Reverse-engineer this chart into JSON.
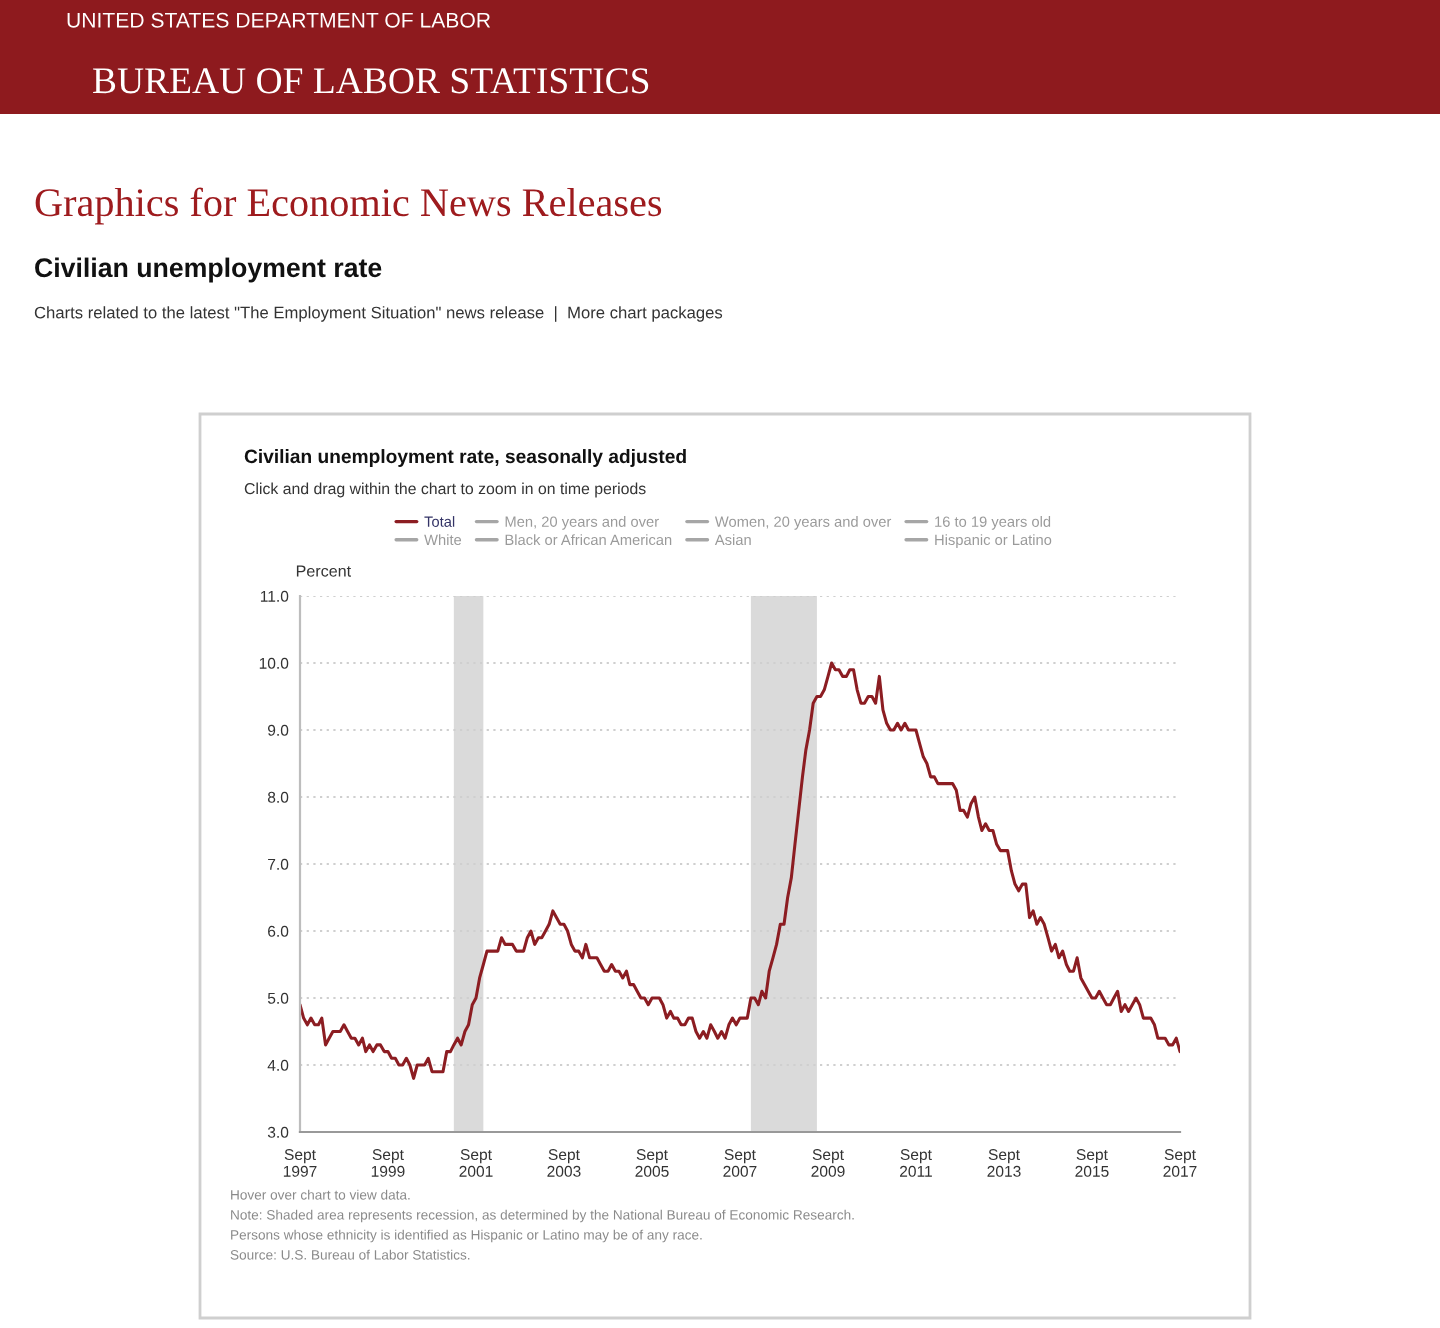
{
  "chart_data": {
    "type": "line",
    "title": "Civilian unemployment rate, seasonally adjusted",
    "subtitle": "Click and drag within the chart to zoom in on time periods",
    "ylabel": "Percent",
    "annotations": [
      "UNITED STATES DEPARTMENT OF LABOR",
      "BUREAU OF LABOR STATISTICS",
      "Graphics for Economic News Releases",
      "Civilian unemployment rate",
      "Charts related to the latest \"The Employment Situation\" news release  |  More chart packages",
      "Hover over chart to view data.",
      "Note: Shaded area represents recession, as determined by the National Bureau of Economic Research.",
      "Persons whose ethnicity is identified as Hispanic or Latino may be of any race.",
      "Source: U.S. Bureau of Labor Statistics."
    ],
    "x": [
      "1997-09",
      "1997-10",
      "1997-11",
      "1997-12",
      "1998-01",
      "1998-02",
      "1998-03",
      "1998-04",
      "1998-05",
      "1998-06",
      "1998-07",
      "1998-08",
      "1998-09",
      "1998-10",
      "1998-11",
      "1998-12",
      "1999-01",
      "1999-02",
      "1999-03",
      "1999-04",
      "1999-05",
      "1999-06",
      "1999-07",
      "1999-08",
      "1999-09",
      "1999-10",
      "1999-11",
      "1999-12",
      "2000-01",
      "2000-02",
      "2000-03",
      "2000-04",
      "2000-05",
      "2000-06",
      "2000-07",
      "2000-08",
      "2000-09",
      "2000-10",
      "2000-11",
      "2000-12",
      "2001-01",
      "2001-02",
      "2001-03",
      "2001-04",
      "2001-05",
      "2001-06",
      "2001-07",
      "2001-08",
      "2001-09",
      "2001-10",
      "2001-11",
      "2001-12",
      "2002-01",
      "2002-02",
      "2002-03",
      "2002-04",
      "2002-05",
      "2002-06",
      "2002-07",
      "2002-08",
      "2002-09",
      "2002-10",
      "2002-11",
      "2002-12",
      "2003-01",
      "2003-02",
      "2003-03",
      "2003-04",
      "2003-05",
      "2003-06",
      "2003-07",
      "2003-08",
      "2003-09",
      "2003-10",
      "2003-11",
      "2003-12",
      "2004-01",
      "2004-02",
      "2004-03",
      "2004-04",
      "2004-05",
      "2004-06",
      "2004-07",
      "2004-08",
      "2004-09",
      "2004-10",
      "2004-11",
      "2004-12",
      "2005-01",
      "2005-02",
      "2005-03",
      "2005-04",
      "2005-05",
      "2005-06",
      "2005-07",
      "2005-08",
      "2005-09",
      "2005-10",
      "2005-11",
      "2005-12",
      "2006-01",
      "2006-02",
      "2006-03",
      "2006-04",
      "2006-05",
      "2006-06",
      "2006-07",
      "2006-08",
      "2006-09",
      "2006-10",
      "2006-11",
      "2006-12",
      "2007-01",
      "2007-02",
      "2007-03",
      "2007-04",
      "2007-05",
      "2007-06",
      "2007-07",
      "2007-08",
      "2007-09",
      "2007-10",
      "2007-11",
      "2007-12",
      "2008-01",
      "2008-02",
      "2008-03",
      "2008-04",
      "2008-05",
      "2008-06",
      "2008-07",
      "2008-08",
      "2008-09",
      "2008-10",
      "2008-11",
      "2008-12",
      "2009-01",
      "2009-02",
      "2009-03",
      "2009-04",
      "2009-05",
      "2009-06",
      "2009-07",
      "2009-08",
      "2009-09",
      "2009-10",
      "2009-11",
      "2009-12",
      "2010-01",
      "2010-02",
      "2010-03",
      "2010-04",
      "2010-05",
      "2010-06",
      "2010-07",
      "2010-08",
      "2010-09",
      "2010-10",
      "2010-11",
      "2010-12",
      "2011-01",
      "2011-02",
      "2011-03",
      "2011-04",
      "2011-05",
      "2011-06",
      "2011-07",
      "2011-08",
      "2011-09",
      "2011-10",
      "2011-11",
      "2011-12",
      "2012-01",
      "2012-02",
      "2012-03",
      "2012-04",
      "2012-05",
      "2012-06",
      "2012-07",
      "2012-08",
      "2012-09",
      "2012-10",
      "2012-11",
      "2012-12",
      "2013-01",
      "2013-02",
      "2013-03",
      "2013-04",
      "2013-05",
      "2013-06",
      "2013-07",
      "2013-08",
      "2013-09",
      "2013-10",
      "2013-11",
      "2013-12",
      "2014-01",
      "2014-02",
      "2014-03",
      "2014-04",
      "2014-05",
      "2014-06",
      "2014-07",
      "2014-08",
      "2014-09",
      "2014-10",
      "2014-11",
      "2014-12",
      "2015-01",
      "2015-02",
      "2015-03",
      "2015-04",
      "2015-05",
      "2015-06",
      "2015-07",
      "2015-08",
      "2015-09",
      "2015-10",
      "2015-11",
      "2015-12",
      "2016-01",
      "2016-02",
      "2016-03",
      "2016-04",
      "2016-05",
      "2016-06",
      "2016-07",
      "2016-08",
      "2016-09",
      "2016-10",
      "2016-11",
      "2016-12",
      "2017-01",
      "2017-02",
      "2017-03",
      "2017-04",
      "2017-05",
      "2017-06",
      "2017-07",
      "2017-08",
      "2017-09"
    ],
    "series": [
      {
        "name": "Total",
        "color": "#8c1d22",
        "values": [
          4.9,
          4.7,
          4.6,
          4.7,
          4.6,
          4.6,
          4.7,
          4.3,
          4.4,
          4.5,
          4.5,
          4.5,
          4.6,
          4.5,
          4.4,
          4.4,
          4.3,
          4.4,
          4.2,
          4.3,
          4.2,
          4.3,
          4.3,
          4.2,
          4.2,
          4.1,
          4.1,
          4.0,
          4.0,
          4.1,
          4.0,
          3.8,
          4.0,
          4.0,
          4.0,
          4.1,
          3.9,
          3.9,
          3.9,
          3.9,
          4.2,
          4.2,
          4.3,
          4.4,
          4.3,
          4.5,
          4.6,
          4.9,
          5.0,
          5.3,
          5.5,
          5.7,
          5.7,
          5.7,
          5.7,
          5.9,
          5.8,
          5.8,
          5.8,
          5.7,
          5.7,
          5.7,
          5.9,
          6.0,
          5.8,
          5.9,
          5.9,
          6.0,
          6.1,
          6.3,
          6.2,
          6.1,
          6.1,
          6.0,
          5.8,
          5.7,
          5.7,
          5.6,
          5.8,
          5.6,
          5.6,
          5.6,
          5.5,
          5.4,
          5.4,
          5.5,
          5.4,
          5.4,
          5.3,
          5.4,
          5.2,
          5.2,
          5.1,
          5.0,
          5.0,
          4.9,
          5.0,
          5.0,
          5.0,
          4.9,
          4.7,
          4.8,
          4.7,
          4.7,
          4.6,
          4.6,
          4.7,
          4.7,
          4.5,
          4.4,
          4.5,
          4.4,
          4.6,
          4.5,
          4.4,
          4.5,
          4.4,
          4.6,
          4.7,
          4.6,
          4.7,
          4.7,
          4.7,
          5.0,
          5.0,
          4.9,
          5.1,
          5.0,
          5.4,
          5.6,
          5.8,
          6.1,
          6.1,
          6.5,
          6.8,
          7.3,
          7.8,
          8.3,
          8.7,
          9.0,
          9.4,
          9.5,
          9.5,
          9.6,
          9.8,
          10.0,
          9.9,
          9.9,
          9.8,
          9.8,
          9.9,
          9.9,
          9.6,
          9.4,
          9.4,
          9.5,
          9.5,
          9.4,
          9.8,
          9.3,
          9.1,
          9.0,
          9.0,
          9.1,
          9.0,
          9.1,
          9.0,
          9.0,
          9.0,
          8.8,
          8.6,
          8.5,
          8.3,
          8.3,
          8.2,
          8.2,
          8.2,
          8.2,
          8.2,
          8.1,
          7.8,
          7.8,
          7.7,
          7.9,
          8.0,
          7.7,
          7.5,
          7.6,
          7.5,
          7.5,
          7.3,
          7.2,
          7.2,
          7.2,
          6.9,
          6.7,
          6.6,
          6.7,
          6.7,
          6.2,
          6.3,
          6.1,
          6.2,
          6.1,
          5.9,
          5.7,
          5.8,
          5.6,
          5.7,
          5.5,
          5.4,
          5.4,
          5.6,
          5.3,
          5.2,
          5.1,
          5.0,
          5.0,
          5.1,
          5.0,
          4.9,
          4.9,
          5.0,
          5.1,
          4.8,
          4.9,
          4.8,
          4.9,
          5.0,
          4.9,
          4.7,
          4.7,
          4.7,
          4.6,
          4.4,
          4.4,
          4.4,
          4.3,
          4.3,
          4.4,
          4.2
        ]
      },
      {
        "name": "Men, 20 years and over",
        "color": "#a6a6a6",
        "values": [
          null,
          null,
          null,
          null,
          null,
          null,
          null,
          null,
          null,
          null,
          null,
          null,
          null,
          null,
          null,
          null,
          null,
          null,
          null,
          null,
          null,
          null,
          null,
          null,
          null,
          null,
          null,
          null,
          null,
          null,
          null,
          null,
          null,
          null,
          null,
          null,
          null,
          null,
          null,
          null,
          null,
          null,
          null,
          null,
          null,
          null,
          null,
          null,
          null,
          null,
          null,
          null,
          null,
          null,
          null,
          null,
          null,
          null,
          null,
          null,
          null,
          null,
          null,
          null,
          null,
          null,
          null,
          null,
          null,
          null,
          null,
          null,
          null,
          null,
          null,
          null,
          null,
          null,
          null,
          null,
          null,
          null,
          null,
          null,
          null,
          null,
          null,
          null,
          null,
          null,
          null,
          null,
          null,
          null,
          null,
          null,
          null,
          null,
          null,
          null,
          null,
          null,
          null,
          null,
          null,
          null,
          null,
          null,
          null,
          null,
          null,
          null,
          null,
          null,
          null,
          null,
          null,
          null,
          null,
          null,
          null,
          null,
          null,
          null,
          null,
          null,
          null,
          null,
          null,
          null,
          null,
          null,
          null,
          null,
          null,
          null,
          null,
          null,
          null,
          null,
          null,
          null,
          null,
          null,
          null,
          null,
          null,
          null,
          null,
          null,
          null,
          null,
          null,
          null,
          null,
          null,
          null,
          null,
          null,
          null,
          null,
          null,
          null,
          null,
          null,
          null,
          null,
          null,
          null,
          null,
          null,
          null,
          null,
          null,
          null,
          null,
          null,
          null,
          null,
          null,
          null,
          null,
          null,
          null,
          null,
          null,
          null,
          null,
          null,
          null,
          null,
          null,
          null,
          null,
          null,
          null,
          null,
          null,
          null,
          null,
          null,
          null,
          null,
          null,
          null,
          null,
          null,
          null,
          null,
          null,
          null,
          null,
          null,
          null,
          null,
          null,
          null,
          null,
          null,
          null,
          null,
          null,
          null,
          null,
          null,
          null,
          null,
          null,
          null,
          null,
          null,
          null,
          null,
          null,
          null,
          null,
          null,
          null,
          null,
          null,
          null
        ]
      },
      {
        "name": "Women, 20 years and over",
        "color": "#a6a6a6",
        "values": [
          null,
          null,
          null,
          null,
          null,
          null,
          null,
          null,
          null,
          null,
          null,
          null,
          null,
          null,
          null,
          null,
          null,
          null,
          null,
          null,
          null,
          null,
          null,
          null,
          null,
          null,
          null,
          null,
          null,
          null,
          null,
          null,
          null,
          null,
          null,
          null,
          null,
          null,
          null,
          null,
          null,
          null,
          null,
          null,
          null,
          null,
          null,
          null,
          null,
          null,
          null,
          null,
          null,
          null,
          null,
          null,
          null,
          null,
          null,
          null,
          null,
          null,
          null,
          null,
          null,
          null,
          null,
          null,
          null,
          null,
          null,
          null,
          null,
          null,
          null,
          null,
          null,
          null,
          null,
          null,
          null,
          null,
          null,
          null,
          null,
          null,
          null,
          null,
          null,
          null,
          null,
          null,
          null,
          null,
          null,
          null,
          null,
          null,
          null,
          null,
          null,
          null,
          null,
          null,
          null,
          null,
          null,
          null,
          null,
          null,
          null,
          null,
          null,
          null,
          null,
          null,
          null,
          null,
          null,
          null,
          null,
          null,
          null,
          null,
          null,
          null,
          null,
          null,
          null,
          null,
          null,
          null,
          null,
          null,
          null,
          null,
          null,
          null,
          null,
          null,
          null,
          null,
          null,
          null,
          null,
          null,
          null,
          null,
          null,
          null,
          null,
          null,
          null,
          null,
          null,
          null,
          null,
          null,
          null,
          null,
          null,
          null,
          null,
          null,
          null,
          null,
          null,
          null,
          null,
          null,
          null,
          null,
          null,
          null,
          null,
          null,
          null,
          null,
          null,
          null,
          null,
          null,
          null,
          null,
          null,
          null,
          null,
          null,
          null,
          null,
          null,
          null,
          null,
          null,
          null,
          null,
          null,
          null,
          null,
          null,
          null,
          null,
          null,
          null,
          null,
          null,
          null,
          null,
          null,
          null,
          null,
          null,
          null,
          null,
          null,
          null,
          null,
          null,
          null,
          null,
          null,
          null,
          null,
          null,
          null,
          null,
          null,
          null,
          null,
          null,
          null,
          null,
          null,
          null,
          null,
          null,
          null,
          null,
          null,
          null,
          null
        ]
      },
      {
        "name": "16 to 19 years old",
        "color": "#a6a6a6",
        "values": [
          null,
          null,
          null,
          null,
          null,
          null,
          null,
          null,
          null,
          null,
          null,
          null,
          null,
          null,
          null,
          null,
          null,
          null,
          null,
          null,
          null,
          null,
          null,
          null,
          null,
          null,
          null,
          null,
          null,
          null,
          null,
          null,
          null,
          null,
          null,
          null,
          null,
          null,
          null,
          null,
          null,
          null,
          null,
          null,
          null,
          null,
          null,
          null,
          null,
          null,
          null,
          null,
          null,
          null,
          null,
          null,
          null,
          null,
          null,
          null,
          null,
          null,
          null,
          null,
          null,
          null,
          null,
          null,
          null,
          null,
          null,
          null,
          null,
          null,
          null,
          null,
          null,
          null,
          null,
          null,
          null,
          null,
          null,
          null,
          null,
          null,
          null,
          null,
          null,
          null,
          null,
          null,
          null,
          null,
          null,
          null,
          null,
          null,
          null,
          null,
          null,
          null,
          null,
          null,
          null,
          null,
          null,
          null,
          null,
          null,
          null,
          null,
          null,
          null,
          null,
          null,
          null,
          null,
          null,
          null,
          null,
          null,
          null,
          null,
          null,
          null,
          null,
          null,
          null,
          null,
          null,
          null,
          null,
          null,
          null,
          null,
          null,
          null,
          null,
          null,
          null,
          null,
          null,
          null,
          null,
          null,
          null,
          null,
          null,
          null,
          null,
          null,
          null,
          null,
          null,
          null,
          null,
          null,
          null,
          null,
          null,
          null,
          null,
          null,
          null,
          null,
          null,
          null,
          null,
          null,
          null,
          null,
          null,
          null,
          null,
          null,
          null,
          null,
          null,
          null,
          null,
          null,
          null,
          null,
          null,
          null,
          null,
          null,
          null,
          null,
          null,
          null,
          null,
          null,
          null,
          null,
          null,
          null,
          null,
          null,
          null,
          null,
          null,
          null,
          null,
          null,
          null,
          null,
          null,
          null,
          null,
          null,
          null,
          null,
          null,
          null,
          null,
          null,
          null,
          null,
          null,
          null,
          null,
          null,
          null,
          null,
          null,
          null,
          null,
          null,
          null,
          null,
          null,
          null,
          null,
          null,
          null,
          null,
          null,
          null,
          null
        ]
      },
      {
        "name": "White",
        "color": "#a6a6a6",
        "values": [
          null,
          null,
          null,
          null,
          null,
          null,
          null,
          null,
          null,
          null,
          null,
          null,
          null,
          null,
          null,
          null,
          null,
          null,
          null,
          null,
          null,
          null,
          null,
          null,
          null,
          null,
          null,
          null,
          null,
          null,
          null,
          null,
          null,
          null,
          null,
          null,
          null,
          null,
          null,
          null,
          null,
          null,
          null,
          null,
          null,
          null,
          null,
          null,
          null,
          null,
          null,
          null,
          null,
          null,
          null,
          null,
          null,
          null,
          null,
          null,
          null,
          null,
          null,
          null,
          null,
          null,
          null,
          null,
          null,
          null,
          null,
          null,
          null,
          null,
          null,
          null,
          null,
          null,
          null,
          null,
          null,
          null,
          null,
          null,
          null,
          null,
          null,
          null,
          null,
          null,
          null,
          null,
          null,
          null,
          null,
          null,
          null,
          null,
          null,
          null,
          null,
          null,
          null,
          null,
          null,
          null,
          null,
          null,
          null,
          null,
          null,
          null,
          null,
          null,
          null,
          null,
          null,
          null,
          null,
          null,
          null,
          null,
          null,
          null,
          null,
          null,
          null,
          null,
          null,
          null,
          null,
          null,
          null,
          null,
          null,
          null,
          null,
          null,
          null,
          null,
          null,
          null,
          null,
          null,
          null,
          null,
          null,
          null,
          null,
          null,
          null,
          null,
          null,
          null,
          null,
          null,
          null,
          null,
          null,
          null,
          null,
          null,
          null,
          null,
          null,
          null,
          null,
          null,
          null,
          null,
          null,
          null,
          null,
          null,
          null,
          null,
          null,
          null,
          null,
          null,
          null,
          null,
          null,
          null,
          null,
          null,
          null,
          null,
          null,
          null,
          null,
          null,
          null,
          null,
          null,
          null,
          null,
          null,
          null,
          null,
          null,
          null,
          null,
          null,
          null,
          null,
          null,
          null,
          null,
          null,
          null,
          null,
          null,
          null,
          null,
          null,
          null,
          null,
          null,
          null,
          null,
          null,
          null,
          null,
          null,
          null,
          null,
          null,
          null,
          null,
          null,
          null,
          null,
          null,
          null,
          null,
          null,
          null,
          null,
          null,
          null
        ]
      },
      {
        "name": "Black or African American",
        "color": "#a6a6a6",
        "values": [
          null,
          null,
          null,
          null,
          null,
          null,
          null,
          null,
          null,
          null,
          null,
          null,
          null,
          null,
          null,
          null,
          null,
          null,
          null,
          null,
          null,
          null,
          null,
          null,
          null,
          null,
          null,
          null,
          null,
          null,
          null,
          null,
          null,
          null,
          null,
          null,
          null,
          null,
          null,
          null,
          null,
          null,
          null,
          null,
          null,
          null,
          null,
          null,
          null,
          null,
          null,
          null,
          null,
          null,
          null,
          null,
          null,
          null,
          null,
          null,
          null,
          null,
          null,
          null,
          null,
          null,
          null,
          null,
          null,
          null,
          null,
          null,
          null,
          null,
          null,
          null,
          null,
          null,
          null,
          null,
          null,
          null,
          null,
          null,
          null,
          null,
          null,
          null,
          null,
          null,
          null,
          null,
          null,
          null,
          null,
          null,
          null,
          null,
          null,
          null,
          null,
          null,
          null,
          null,
          null,
          null,
          null,
          null,
          null,
          null,
          null,
          null,
          null,
          null,
          null,
          null,
          null,
          null,
          null,
          null,
          null,
          null,
          null,
          null,
          null,
          null,
          null,
          null,
          null,
          null,
          null,
          null,
          null,
          null,
          null,
          null,
          null,
          null,
          null,
          null,
          null,
          null,
          null,
          null,
          null,
          null,
          null,
          null,
          null,
          null,
          null,
          null,
          null,
          null,
          null,
          null,
          null,
          null,
          null,
          null,
          null,
          null,
          null,
          null,
          null,
          null,
          null,
          null,
          null,
          null,
          null,
          null,
          null,
          null,
          null,
          null,
          null,
          null,
          null,
          null,
          null,
          null,
          null,
          null,
          null,
          null,
          null,
          null,
          null,
          null,
          null,
          null,
          null,
          null,
          null,
          null,
          null,
          null,
          null,
          null,
          null,
          null,
          null,
          null,
          null,
          null,
          null,
          null,
          null,
          null,
          null,
          null,
          null,
          null,
          null,
          null,
          null,
          null,
          null,
          null,
          null,
          null,
          null,
          null,
          null,
          null,
          null,
          null,
          null,
          null,
          null,
          null,
          null,
          null,
          null,
          null,
          null,
          null,
          null,
          null,
          null
        ]
      },
      {
        "name": "Asian",
        "color": "#a6a6a6",
        "values": [
          null,
          null,
          null,
          null,
          null,
          null,
          null,
          null,
          null,
          null,
          null,
          null,
          null,
          null,
          null,
          null,
          null,
          null,
          null,
          null,
          null,
          null,
          null,
          null,
          null,
          null,
          null,
          null,
          null,
          null,
          null,
          null,
          null,
          null,
          null,
          null,
          null,
          null,
          null,
          null,
          null,
          null,
          null,
          null,
          null,
          null,
          null,
          null,
          null,
          null,
          null,
          null,
          null,
          null,
          null,
          null,
          null,
          null,
          null,
          null,
          null,
          null,
          null,
          null,
          null,
          null,
          null,
          null,
          null,
          null,
          null,
          null,
          null,
          null,
          null,
          null,
          null,
          null,
          null,
          null,
          null,
          null,
          null,
          null,
          null,
          null,
          null,
          null,
          null,
          null,
          null,
          null,
          null,
          null,
          null,
          null,
          null,
          null,
          null,
          null,
          null,
          null,
          null,
          null,
          null,
          null,
          null,
          null,
          null,
          null,
          null,
          null,
          null,
          null,
          null,
          null,
          null,
          null,
          null,
          null,
          null,
          null,
          null,
          null,
          null,
          null,
          null,
          null,
          null,
          null,
          null,
          null,
          null,
          null,
          null,
          null,
          null,
          null,
          null,
          null,
          null,
          null,
          null,
          null,
          null,
          null,
          null,
          null,
          null,
          null,
          null,
          null,
          null,
          null,
          null,
          null,
          null,
          null,
          null,
          null,
          null,
          null,
          null,
          null,
          null,
          null,
          null,
          null,
          null,
          null,
          null,
          null,
          null,
          null,
          null,
          null,
          null,
          null,
          null,
          null,
          null,
          null,
          null,
          null,
          null,
          null,
          null,
          null,
          null,
          null,
          null,
          null,
          null,
          null,
          null,
          null,
          null,
          null,
          null,
          null,
          null,
          null,
          null,
          null,
          null,
          null,
          null,
          null,
          null,
          null,
          null,
          null,
          null,
          null,
          null,
          null,
          null,
          null,
          null,
          null,
          null,
          null,
          null,
          null,
          null,
          null,
          null,
          null,
          null,
          null,
          null,
          null,
          null,
          null,
          null,
          null,
          null,
          null,
          null,
          null,
          null
        ]
      },
      {
        "name": "Hispanic or Latino",
        "color": "#a6a6a6",
        "values": [
          null,
          null,
          null,
          null,
          null,
          null,
          null,
          null,
          null,
          null,
          null,
          null,
          null,
          null,
          null,
          null,
          null,
          null,
          null,
          null,
          null,
          null,
          null,
          null,
          null,
          null,
          null,
          null,
          null,
          null,
          null,
          null,
          null,
          null,
          null,
          null,
          null,
          null,
          null,
          null,
          null,
          null,
          null,
          null,
          null,
          null,
          null,
          null,
          null,
          null,
          null,
          null,
          null,
          null,
          null,
          null,
          null,
          null,
          null,
          null,
          null,
          null,
          null,
          null,
          null,
          null,
          null,
          null,
          null,
          null,
          null,
          null,
          null,
          null,
          null,
          null,
          null,
          null,
          null,
          null,
          null,
          null,
          null,
          null,
          null,
          null,
          null,
          null,
          null,
          null,
          null,
          null,
          null,
          null,
          null,
          null,
          null,
          null,
          null,
          null,
          null,
          null,
          null,
          null,
          null,
          null,
          null,
          null,
          null,
          null,
          null,
          null,
          null,
          null,
          null,
          null,
          null,
          null,
          null,
          null,
          null,
          null,
          null,
          null,
          null,
          null,
          null,
          null,
          null,
          null,
          null,
          null,
          null,
          null,
          null,
          null,
          null,
          null,
          null,
          null,
          null,
          null,
          null,
          null,
          null,
          null,
          null,
          null,
          null,
          null,
          null,
          null,
          null,
          null,
          null,
          null,
          null,
          null,
          null,
          null,
          null,
          null,
          null,
          null,
          null,
          null,
          null,
          null,
          null,
          null,
          null,
          null,
          null,
          null,
          null,
          null,
          null,
          null,
          null,
          null,
          null,
          null,
          null,
          null,
          null,
          null,
          null,
          null,
          null,
          null,
          null,
          null,
          null,
          null,
          null,
          null,
          null,
          null,
          null,
          null,
          null,
          null,
          null,
          null,
          null,
          null,
          null,
          null,
          null,
          null,
          null,
          null,
          null,
          null,
          null,
          null,
          null,
          null,
          null,
          null,
          null,
          null,
          null,
          null,
          null,
          null,
          null,
          null,
          null,
          null,
          null,
          null,
          null,
          null,
          null,
          null,
          null,
          null,
          null,
          null,
          null
        ]
      }
    ],
    "xlim": [
      "1997-09",
      "2017-09"
    ],
    "xticks": [
      {
        "value": "1997-09",
        "label": "Sept\n1997"
      },
      {
        "value": "1999-09",
        "label": "Sept\n1999"
      },
      {
        "value": "2001-09",
        "label": "Sept\n2001"
      },
      {
        "value": "2003-09",
        "label": "Sept\n2003"
      },
      {
        "value": "2005-09",
        "label": "Sept\n2005"
      },
      {
        "value": "2007-09",
        "label": "Sept\n2007"
      },
      {
        "value": "2009-09",
        "label": "Sept\n2009"
      },
      {
        "value": "2011-09",
        "label": "Sept\n2011"
      },
      {
        "value": "2013-09",
        "label": "Sept\n2013"
      },
      {
        "value": "2015-09",
        "label": "Sept\n2015"
      },
      {
        "value": "2017-09",
        "label": "Sept\n2017"
      }
    ],
    "ylim": [
      3,
      11
    ],
    "yticks": [
      {
        "value": 3,
        "label": "3.0"
      },
      {
        "value": 4,
        "label": "4.0"
      },
      {
        "value": 5,
        "label": "5.0"
      },
      {
        "value": 6,
        "label": "6.0"
      },
      {
        "value": 7,
        "label": "7.0"
      },
      {
        "value": 8,
        "label": "8.0"
      },
      {
        "value": 9,
        "label": "9.0"
      },
      {
        "value": 10,
        "label": "10.0"
      },
      {
        "value": 11,
        "label": "11.0"
      }
    ],
    "bands": [
      {
        "axis": "x",
        "from": "2001-03",
        "to": "2001-11",
        "color": "#dadada"
      },
      {
        "axis": "x",
        "from": "2007-12",
        "to": "2009-06",
        "color": "#dadada"
      }
    ],
    "grid": "y",
    "legend": "top"
  }
}
